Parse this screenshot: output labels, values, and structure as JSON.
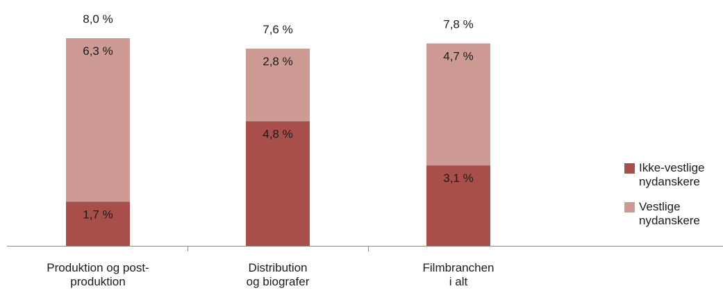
{
  "chart_data": {
    "type": "bar",
    "stacked": true,
    "categories": [
      [
        "Produktion og post-",
        "produktion"
      ],
      [
        "Distribution",
        "og biografer"
      ],
      [
        "Filmbranchen",
        "i alt"
      ]
    ],
    "series": [
      {
        "name": "Ikke-vestlige\nnydanskere",
        "values": [
          1.7,
          4.8,
          3.1
        ],
        "labels": [
          "1,7 %",
          "4,8 %",
          "3,1 %"
        ],
        "color": "#a84f4c"
      },
      {
        "name": "Vestlige\nnydanskere",
        "values": [
          6.3,
          2.8,
          4.7
        ],
        "labels": [
          "6,3 %",
          "2,8 %",
          "4,7 %"
        ],
        "color": "#cd9b94"
      }
    ],
    "totals": [
      8.0,
      7.6,
      7.8
    ],
    "total_labels": [
      "8,0 %",
      "7,6 %",
      "7,8 %"
    ],
    "ylim": [
      0,
      8.0
    ],
    "grid": false,
    "legend_position": "right"
  }
}
